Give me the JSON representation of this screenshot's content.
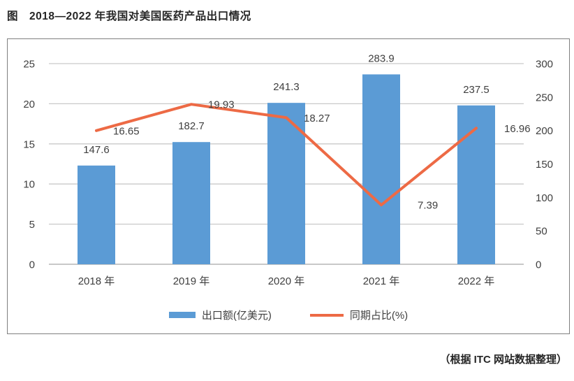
{
  "title": "图　2018—2022 年我国对美国医药产品出口情况",
  "footer": "（根据 ITC 网站数据整理）",
  "colors": {
    "bar": "#5b9bd5",
    "line": "#ed6a45",
    "grid": "#c9c9c9",
    "baseline": "#a6a6a6",
    "axis_text": "#3f3f3f",
    "data_label": "#404040",
    "frame_border": "#7f7f7f"
  },
  "legend": [
    {
      "label": "出口额(亿美元)",
      "type": "bar"
    },
    {
      "label": "同期占比(%)",
      "type": "line"
    }
  ],
  "chart_data": {
    "type": "bar+line combo",
    "title": "2018—2022 年我国对美国医药产品出口情况",
    "categories": [
      "2018 年",
      "2019 年",
      "2020 年",
      "2021 年",
      "2022 年"
    ],
    "series": [
      {
        "name": "出口额(亿美元)",
        "type": "bar",
        "axis": "right",
        "values": [
          147.6,
          182.7,
          241.3,
          283.9,
          237.5
        ]
      },
      {
        "name": "同期占比(%)",
        "type": "line",
        "axis": "left",
        "values": [
          16.65,
          19.93,
          18.27,
          7.39,
          16.96
        ]
      }
    ],
    "left_axis": {
      "min": 0,
      "max": 25,
      "step": 5,
      "ticks": [
        0,
        5,
        10,
        15,
        20,
        25
      ]
    },
    "right_axis": {
      "min": 0,
      "max": 300,
      "step": 50,
      "ticks": [
        0,
        50,
        100,
        150,
        200,
        250,
        300
      ]
    },
    "grid": true,
    "legend_position": "bottom",
    "data_labels": true,
    "source_note": "根据 ITC 网站数据整理"
  }
}
